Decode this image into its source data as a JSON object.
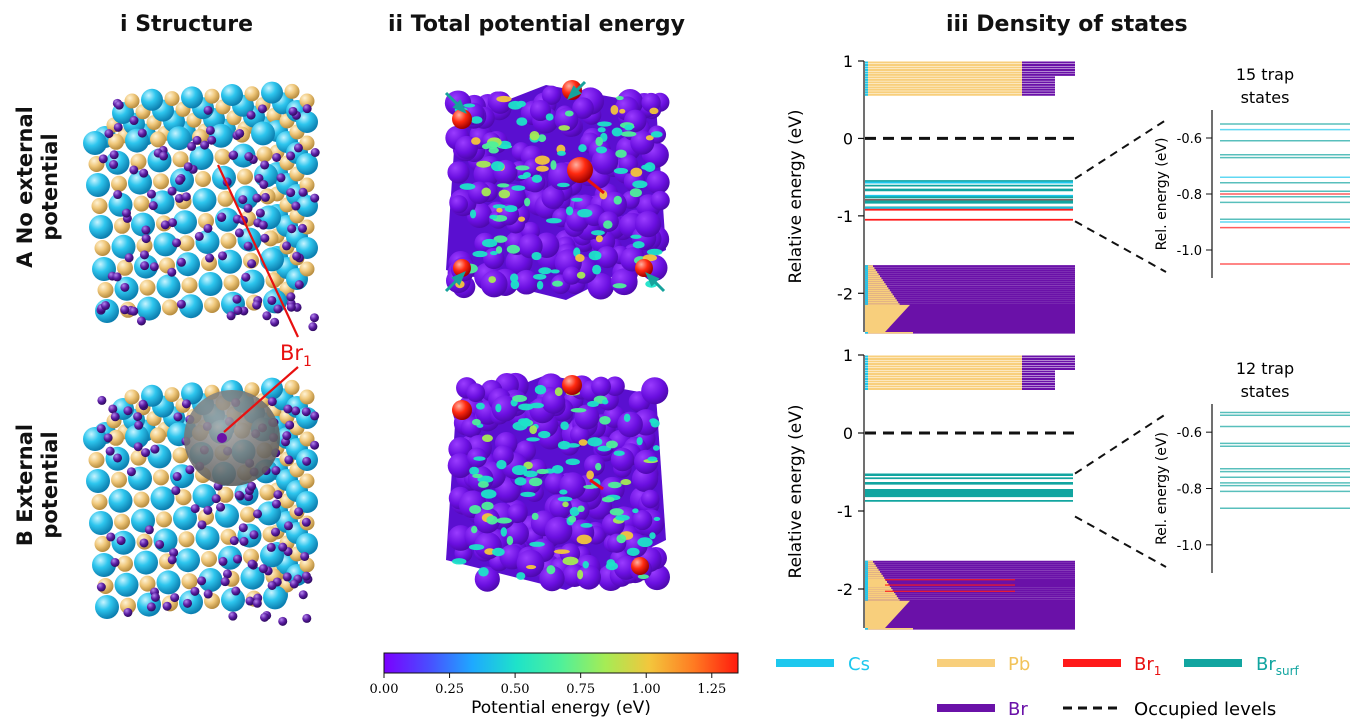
{
  "columns": {
    "structure": "i Structure",
    "potential": "ii Total potential energy",
    "dos": "iii Density of states"
  },
  "rows": {
    "a_line1": "A No external",
    "a_line2": "potential",
    "b_line1": "B External",
    "b_line2": "potential"
  },
  "annotation": {
    "br1_main": "Br",
    "br1_sub": "1"
  },
  "colorbar": {
    "label": "Potential energy (eV)",
    "ticks": [
      "0.00",
      "0.25",
      "0.50",
      "0.75",
      "1.00",
      "1.25"
    ],
    "range": [
      0,
      1.35
    ],
    "colors": [
      "#7b00ff",
      "#4a4cff",
      "#1ea9ff",
      "#1ee3c9",
      "#4ff09a",
      "#a5ec55",
      "#f3c63c",
      "#ff7b22",
      "#ff1a0d"
    ]
  },
  "dos": {
    "ylabel": "Relative energy (eV)",
    "ylim": [
      -2.5,
      1
    ],
    "yticks": [
      "1",
      "0",
      "-1",
      "-2"
    ],
    "inset_ylabel": "Rel. energy (eV)",
    "inset_ticks": [
      "-0.6",
      "-0.8",
      "-1.0"
    ],
    "inset_ylim": [
      -1.1,
      -0.5
    ],
    "panel_a": {
      "trap_line1": "15 trap",
      "trap_line2": "states",
      "trap_levels": [
        {
          "e": -0.55,
          "species": "Br_surf"
        },
        {
          "e": -0.57,
          "species": "Cs"
        },
        {
          "e": -0.61,
          "species": "Br_surf"
        },
        {
          "e": -0.66,
          "species": "Br_surf"
        },
        {
          "e": -0.67,
          "species": "Br_surf"
        },
        {
          "e": -0.74,
          "species": "Cs"
        },
        {
          "e": -0.76,
          "species": "Br_surf"
        },
        {
          "e": -0.79,
          "species": "Br_surf"
        },
        {
          "e": -0.8,
          "species": "Br1"
        },
        {
          "e": -0.81,
          "species": "Br_surf"
        },
        {
          "e": -0.83,
          "species": "Br_surf"
        },
        {
          "e": -0.89,
          "species": "Br_surf"
        },
        {
          "e": -0.9,
          "species": "Cs"
        },
        {
          "e": -0.92,
          "species": "Br1"
        },
        {
          "e": -1.05,
          "species": "Br1"
        }
      ]
    },
    "panel_b": {
      "trap_line1": "12 trap",
      "trap_line2": "states",
      "trap_levels": [
        {
          "e": -0.53,
          "species": "Br_surf"
        },
        {
          "e": -0.54,
          "species": "Br_surf"
        },
        {
          "e": -0.58,
          "species": "Br_surf"
        },
        {
          "e": -0.64,
          "species": "Br_surf"
        },
        {
          "e": -0.65,
          "species": "Br_surf"
        },
        {
          "e": -0.73,
          "species": "Br_surf"
        },
        {
          "e": -0.74,
          "species": "Br_surf"
        },
        {
          "e": -0.76,
          "species": "Br_surf"
        },
        {
          "e": -0.78,
          "species": "Br_surf"
        },
        {
          "e": -0.79,
          "species": "Br_surf"
        },
        {
          "e": -0.81,
          "species": "Br_surf"
        },
        {
          "e": -0.87,
          "species": "Br_surf"
        }
      ]
    }
  },
  "legend": {
    "cs": "Cs",
    "pb": "Pb",
    "br1_main": "Br",
    "br1_sub": "1",
    "brsurf_main": "Br",
    "brsurf_sub": "surf",
    "br": "Br",
    "occupied": "Occupied levels"
  },
  "colors": {
    "cs": "#1ec8ee",
    "pb": "#f8cf7c",
    "br1": "#ff1a1a",
    "br_surf": "#12a5a0",
    "br": "#6a11a8",
    "occupied": "#111111",
    "br1_label": "#e81010",
    "shell": "#7d7d7d"
  }
}
